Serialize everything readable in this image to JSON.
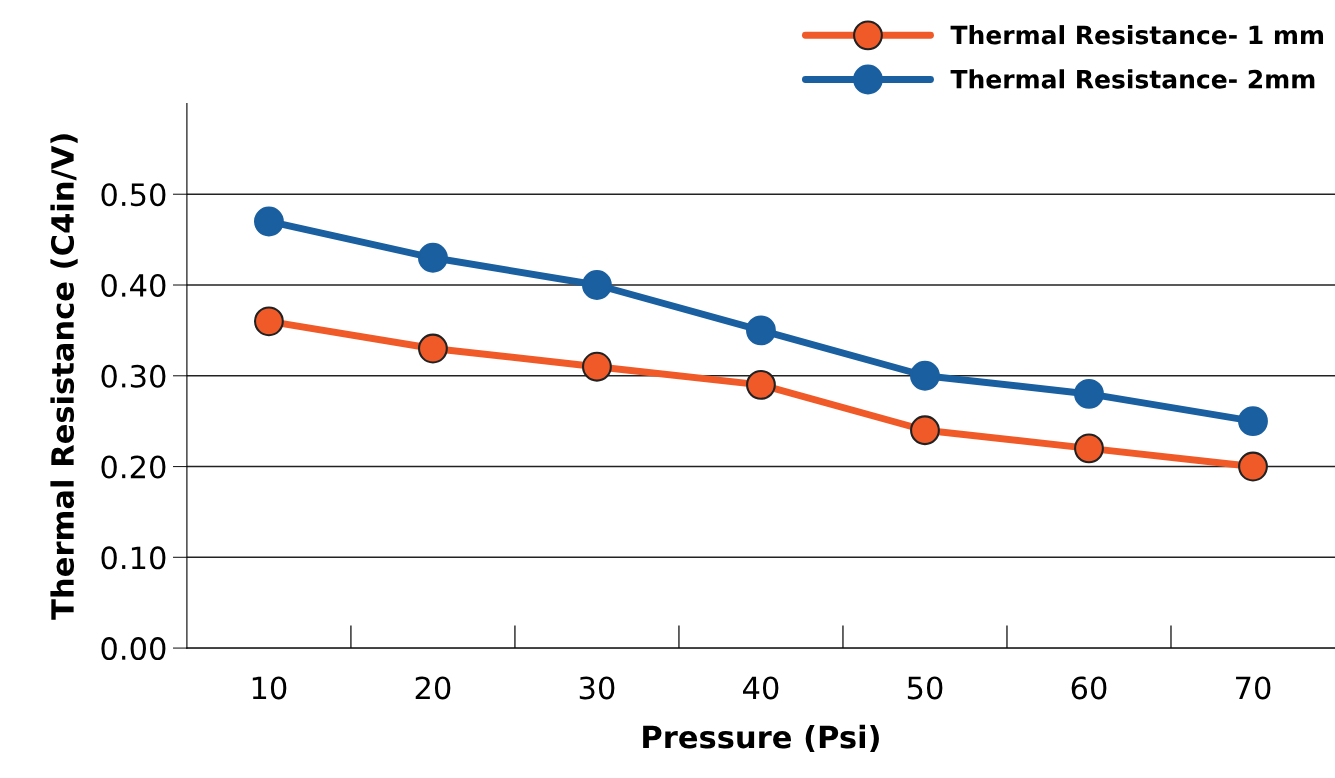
{
  "chart_data": {
    "type": "line",
    "xlabel": "Pressure (Psi)",
    "ylabel": "Thermal Resistance (C4in/V)",
    "categories": [
      "10",
      "20",
      "30",
      "40",
      "50",
      "60",
      "70"
    ],
    "series": [
      {
        "name": "Thermal Resistance- 1 mm",
        "color": "#f05a28",
        "values": [
          0.36,
          0.33,
          0.31,
          0.29,
          0.24,
          0.22,
          0.2
        ]
      },
      {
        "name": "Thermal Resistance- 2mm",
        "color": "#1a5fa0",
        "values": [
          0.47,
          0.43,
          0.4,
          0.35,
          0.3,
          0.28,
          0.25
        ]
      }
    ],
    "ylim": [
      0,
      0.6
    ],
    "yticks": [
      {
        "value": 0,
        "label": "0.00"
      },
      {
        "value": 0.1,
        "label": "0.10"
      },
      {
        "value": 0.2,
        "label": "0.20"
      },
      {
        "value": 0.3,
        "label": "0.30"
      },
      {
        "value": 0.4,
        "label": "0.40"
      },
      {
        "value": 0.5,
        "label": "0.50"
      }
    ],
    "grid": "y",
    "legend": "top right",
    "marker": "circle",
    "line_style": "solid"
  }
}
